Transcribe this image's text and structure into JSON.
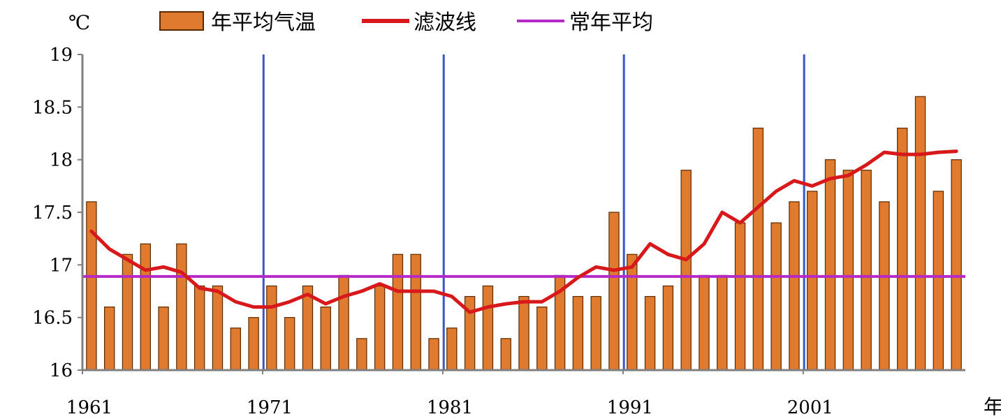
{
  "chart_data": {
    "type": "bar",
    "y_unit_label": "℃",
    "x_unit_label": "年",
    "ylim": [
      16,
      19
    ],
    "y_ticks": [
      "16",
      "16.5",
      "17",
      "17.5",
      "18",
      "18.5",
      "19"
    ],
    "x_tick_labels": [
      "1961",
      "1971",
      "1981",
      "1991",
      "2001"
    ],
    "x_tick_years": [
      1961,
      1971,
      1981,
      1991,
      2001
    ],
    "divider_years": [
      1971,
      1981,
      1991,
      2001
    ],
    "years": [
      1961,
      1962,
      1963,
      1964,
      1965,
      1966,
      1967,
      1968,
      1969,
      1970,
      1971,
      1972,
      1973,
      1974,
      1975,
      1976,
      1977,
      1978,
      1979,
      1980,
      1981,
      1982,
      1983,
      1984,
      1985,
      1986,
      1987,
      1988,
      1989,
      1990,
      1991,
      1992,
      1993,
      1994,
      1995,
      1996,
      1997,
      1998,
      1999,
      2000,
      2001,
      2002,
      2003,
      2004,
      2005,
      2006,
      2007,
      2008,
      2009
    ],
    "legend": {
      "bars": "年平均气温",
      "filter": "滤波线",
      "mean": "常年平均"
    },
    "series": [
      {
        "name": "年平均气温",
        "kind": "bar",
        "color": "#e07a2e",
        "values": [
          17.6,
          16.6,
          17.1,
          17.2,
          16.6,
          17.2,
          16.8,
          16.8,
          16.4,
          16.5,
          16.8,
          16.5,
          16.8,
          16.6,
          16.9,
          16.3,
          16.8,
          17.1,
          17.1,
          16.3,
          16.4,
          16.7,
          16.8,
          16.3,
          16.7,
          16.6,
          16.9,
          16.7,
          16.7,
          17.5,
          17.1,
          16.7,
          16.8,
          17.9,
          16.9,
          16.9,
          17.4,
          18.3,
          17.4,
          17.6,
          17.7,
          18.0,
          17.9,
          17.9,
          17.6,
          18.3,
          18.6,
          17.7,
          18.0
        ]
      },
      {
        "name": "滤波线",
        "kind": "line",
        "color": "#d7191c",
        "values": [
          17.32,
          17.15,
          17.05,
          16.95,
          16.98,
          16.93,
          16.78,
          16.75,
          16.65,
          16.6,
          16.6,
          16.65,
          16.72,
          16.63,
          16.7,
          16.75,
          16.82,
          16.75,
          16.75,
          16.75,
          16.7,
          16.55,
          16.6,
          16.63,
          16.65,
          16.65,
          16.75,
          16.88,
          16.98,
          16.95,
          16.98,
          17.2,
          17.1,
          17.05,
          17.2,
          17.5,
          17.4,
          17.55,
          17.7,
          17.8,
          17.75,
          17.82,
          17.85,
          17.95,
          18.07,
          18.05,
          18.05,
          18.07,
          18.08
        ]
      },
      {
        "name": "常年平均",
        "kind": "hline",
        "color": "#b52ac7",
        "value": 16.89
      }
    ],
    "divider_color": "#3a55c8",
    "axis_color": "#808080"
  }
}
